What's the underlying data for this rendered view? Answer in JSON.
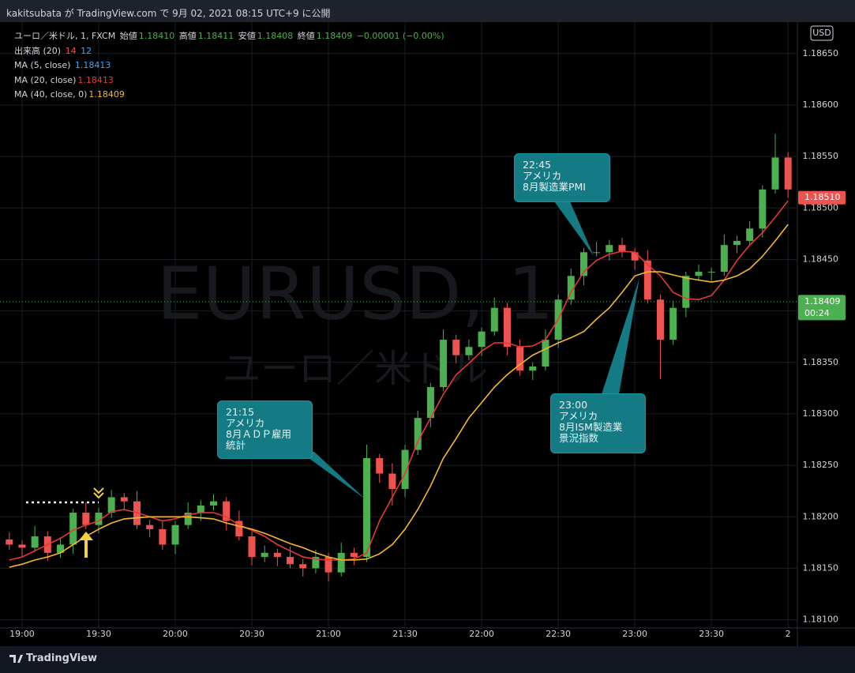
{
  "header": "kakitsubata が TradingView.com で 9月 02, 2021 08:15 UTC+9 に公開",
  "footer": "TradingView",
  "currency": "USD",
  "watermark": {
    "symbol": "EURUSD, 1",
    "name": "ユーロ／米ドル"
  },
  "legend": {
    "symbol": "ユーロ／米ドル, 1, FXCM",
    "ohlc": [
      [
        "始値",
        "1.18410"
      ],
      [
        "高値",
        "1.18411"
      ],
      [
        "安値",
        "1.18408"
      ],
      [
        "終値",
        "1.18409"
      ]
    ],
    "change": "−0.00001 (−0.00%)"
  },
  "indicators": [
    {
      "name": "出来高 (20)",
      "readouts": [
        "14",
        "12"
      ]
    },
    {
      "name": "MA (5, close)",
      "readouts": [
        "1.18413"
      ]
    }
  ],
  "annotations": [
    {
      "lines": [
        "21:15",
        "アメリカ",
        "8月ＡＤＰ雇用",
        "統計"
      ]
    },
    {
      "lines": [
        "22:45",
        "アメリカ",
        "8月製造業PMI"
      ]
    },
    {
      "lines": [
        "23:00",
        "アメリカ",
        "8月ISM製造業",
        "景況指数"
      ]
    }
  ],
  "chart_data": {
    "type": "candlestick",
    "categories": [
      null,
      "19:00",
      null,
      null,
      null,
      null,
      null,
      "19:30",
      null,
      null,
      null,
      null,
      null,
      "20:00",
      null,
      null,
      null,
      null,
      null,
      "20:30",
      null,
      null,
      null,
      null,
      null,
      "21:00",
      null,
      null,
      null,
      null,
      null,
      "21:30",
      null,
      null,
      null,
      null,
      null,
      "22:00",
      null,
      null,
      null,
      null,
      null,
      "22:30",
      null,
      null,
      null,
      null,
      null,
      "23:00",
      null,
      null,
      null,
      null,
      null,
      "23:30",
      null,
      null,
      null,
      null,
      null,
      "2"
    ],
    "open": [
      1.18178,
      1.18173,
      1.1817,
      1.18181,
      1.18165,
      1.18173,
      1.18204,
      1.18192,
      1.18204,
      1.18219,
      1.18215,
      1.18192,
      1.18188,
      1.18173,
      1.18192,
      1.18204,
      1.18211,
      1.18215,
      1.18196,
      1.18181,
      1.18161,
      1.18165,
      1.18161,
      1.18154,
      1.1815,
      1.18161,
      1.18146,
      1.18165,
      1.18161,
      1.18257,
      1.18242,
      1.18227,
      1.18265,
      1.18296,
      1.18326,
      1.18372,
      1.18357,
      1.18365,
      1.1838,
      1.18403,
      1.18365,
      1.18342,
      1.18346,
      1.18372,
      1.18411,
      1.18434,
      1.18457,
      1.18457,
      1.18464,
      1.18457,
      1.18449,
      1.18411,
      1.18372,
      1.18403,
      1.18434,
      1.18438,
      1.18438,
      1.18464,
      1.18468,
      1.1848,
      1.18518,
      1.18549
    ],
    "high": [
      1.18185,
      1.18177,
      1.18191,
      1.18186,
      1.1818,
      1.18208,
      1.18214,
      1.18209,
      1.18226,
      1.18223,
      1.18225,
      1.18197,
      1.18195,
      1.18196,
      1.18214,
      1.18216,
      1.18222,
      1.18219,
      1.18206,
      1.18186,
      1.18172,
      1.18169,
      1.18171,
      1.18159,
      1.18168,
      1.18165,
      1.18175,
      1.1817,
      1.1827,
      1.18261,
      1.18252,
      1.1827,
      1.18303,
      1.1833,
      1.18382,
      1.18377,
      1.18372,
      1.18384,
      1.18413,
      1.18408,
      1.18372,
      1.1835,
      1.18382,
      1.18416,
      1.18441,
      1.18461,
      1.18467,
      1.18469,
      1.18471,
      1.18461,
      1.18459,
      1.18416,
      1.1841,
      1.18438,
      1.18445,
      1.18442,
      1.18474,
      1.18473,
      1.18487,
      1.18522,
      1.18572,
      1.18554
    ],
    "low": [
      1.18168,
      1.18161,
      1.18166,
      1.18157,
      1.1816,
      1.18164,
      1.18188,
      1.18184,
      1.18199,
      1.18206,
      1.18188,
      1.1818,
      1.18168,
      1.18164,
      1.18188,
      1.18196,
      1.18206,
      1.18187,
      1.18177,
      1.18153,
      1.18156,
      1.18152,
      1.1815,
      1.18142,
      1.18145,
      1.18137,
      1.18142,
      1.18153,
      1.18156,
      1.18233,
      1.18211,
      1.18219,
      1.1826,
      1.18287,
      1.18322,
      1.18349,
      1.18352,
      1.18356,
      1.18376,
      1.18357,
      1.18337,
      1.18333,
      1.18342,
      1.18364,
      1.18406,
      1.18425,
      1.18453,
      1.18449,
      1.18452,
      1.1844,
      1.18407,
      1.18334,
      1.18367,
      1.18394,
      1.18429,
      1.18429,
      1.18434,
      1.18456,
      1.18463,
      1.18471,
      1.18514,
      1.1851
    ],
    "close": [
      1.18173,
      1.1817,
      1.18181,
      1.18165,
      1.18173,
      1.18204,
      1.18192,
      1.18204,
      1.18219,
      1.18215,
      1.18192,
      1.18188,
      1.18173,
      1.18192,
      1.18204,
      1.18211,
      1.18215,
      1.18196,
      1.18181,
      1.18161,
      1.18165,
      1.18161,
      1.18154,
      1.1815,
      1.18161,
      1.18146,
      1.18165,
      1.18161,
      1.18257,
      1.18242,
      1.18227,
      1.18265,
      1.18296,
      1.18326,
      1.18372,
      1.18357,
      1.18365,
      1.1838,
      1.18403,
      1.18365,
      1.18342,
      1.18346,
      1.18372,
      1.18411,
      1.18434,
      1.18457,
      1.18457,
      1.18464,
      1.18457,
      1.18449,
      1.18411,
      1.18372,
      1.18403,
      1.18434,
      1.18438,
      1.18438,
      1.18464,
      1.18468,
      1.1848,
      1.18518,
      1.18549,
      1.18518
    ],
    "up_color": "#4caf50",
    "down_color": "#ef5350",
    "series": [
      {
        "name": "MA (20, close)",
        "color": "#e53935",
        "readout": "1.18413",
        "values": [
          1.18158,
          1.18161,
          1.18167,
          1.18173,
          1.18179,
          1.18187,
          1.18192,
          1.18196,
          1.18205,
          1.18207,
          1.18204,
          1.182,
          1.18196,
          1.18198,
          1.18202,
          1.18204,
          1.18204,
          1.182,
          1.18192,
          1.18187,
          1.18181,
          1.18173,
          1.18167,
          1.18161,
          1.18159,
          1.18158,
          1.18158,
          1.18159,
          1.18165,
          1.18196,
          1.18219,
          1.18242,
          1.18273,
          1.18296,
          1.18319,
          1.18338,
          1.18349,
          1.18361,
          1.18369,
          1.18369,
          1.18365,
          1.18366,
          1.18372,
          1.18392,
          1.18418,
          1.18438,
          1.18449,
          1.18455,
          1.18458,
          1.18457,
          1.18445,
          1.18434,
          1.18418,
          1.18412,
          1.18411,
          1.18415,
          1.1843,
          1.18449,
          1.18464,
          1.18476,
          1.18491,
          1.18507
        ]
      },
      {
        "name": "MA (40, close, 0)",
        "color": "#f5b82e",
        "readout": "1.18409",
        "values": [
          1.18151,
          1.18154,
          1.18158,
          1.18161,
          1.18165,
          1.18173,
          1.18181,
          1.18188,
          1.18194,
          1.18198,
          1.18199,
          1.182,
          1.182,
          1.182,
          1.182,
          1.18199,
          1.18198,
          1.18194,
          1.18191,
          1.18188,
          1.18184,
          1.18179,
          1.18174,
          1.1817,
          1.18165,
          1.18161,
          1.18158,
          1.18158,
          1.18159,
          1.18164,
          1.18173,
          1.18188,
          1.18207,
          1.1823,
          1.18257,
          1.18276,
          1.18296,
          1.18311,
          1.18326,
          1.18338,
          1.18348,
          1.18357,
          1.18363,
          1.18369,
          1.18374,
          1.1838,
          1.18392,
          1.18403,
          1.18418,
          1.18434,
          1.18438,
          1.18438,
          1.18435,
          1.18432,
          1.1843,
          1.18428,
          1.1843,
          1.18434,
          1.18441,
          1.18453,
          1.18468,
          1.18484
        ]
      }
    ],
    "ylim": [
      1.18092,
      1.18679
    ],
    "yticks": [
      {
        "value": 1.181,
        "label": "1.18100"
      },
      {
        "value": 1.1815,
        "label": "1.18150"
      },
      {
        "value": 1.182,
        "label": "1.18200"
      },
      {
        "value": 1.1825,
        "label": "1.18250"
      },
      {
        "value": 1.183,
        "label": "1.18300"
      },
      {
        "value": 1.1835,
        "label": "1.18350"
      },
      {
        "value": 1.184,
        "label": "1.18400"
      },
      {
        "value": 1.1845,
        "label": "1.18450"
      },
      {
        "value": 1.185,
        "label": "1.18500"
      },
      {
        "value": 1.1855,
        "label": "1.18550"
      },
      {
        "value": 1.186,
        "label": "1.18600"
      },
      {
        "value": 1.1865,
        "label": "1.18650"
      }
    ],
    "grid": true,
    "price_lines": [
      {
        "value": 1.1851,
        "label": "1.18510",
        "color": "#ef5350"
      },
      {
        "value": 1.18409,
        "label": "1.18409",
        "color": "#4caf50",
        "countdown": "00:24"
      }
    ]
  }
}
